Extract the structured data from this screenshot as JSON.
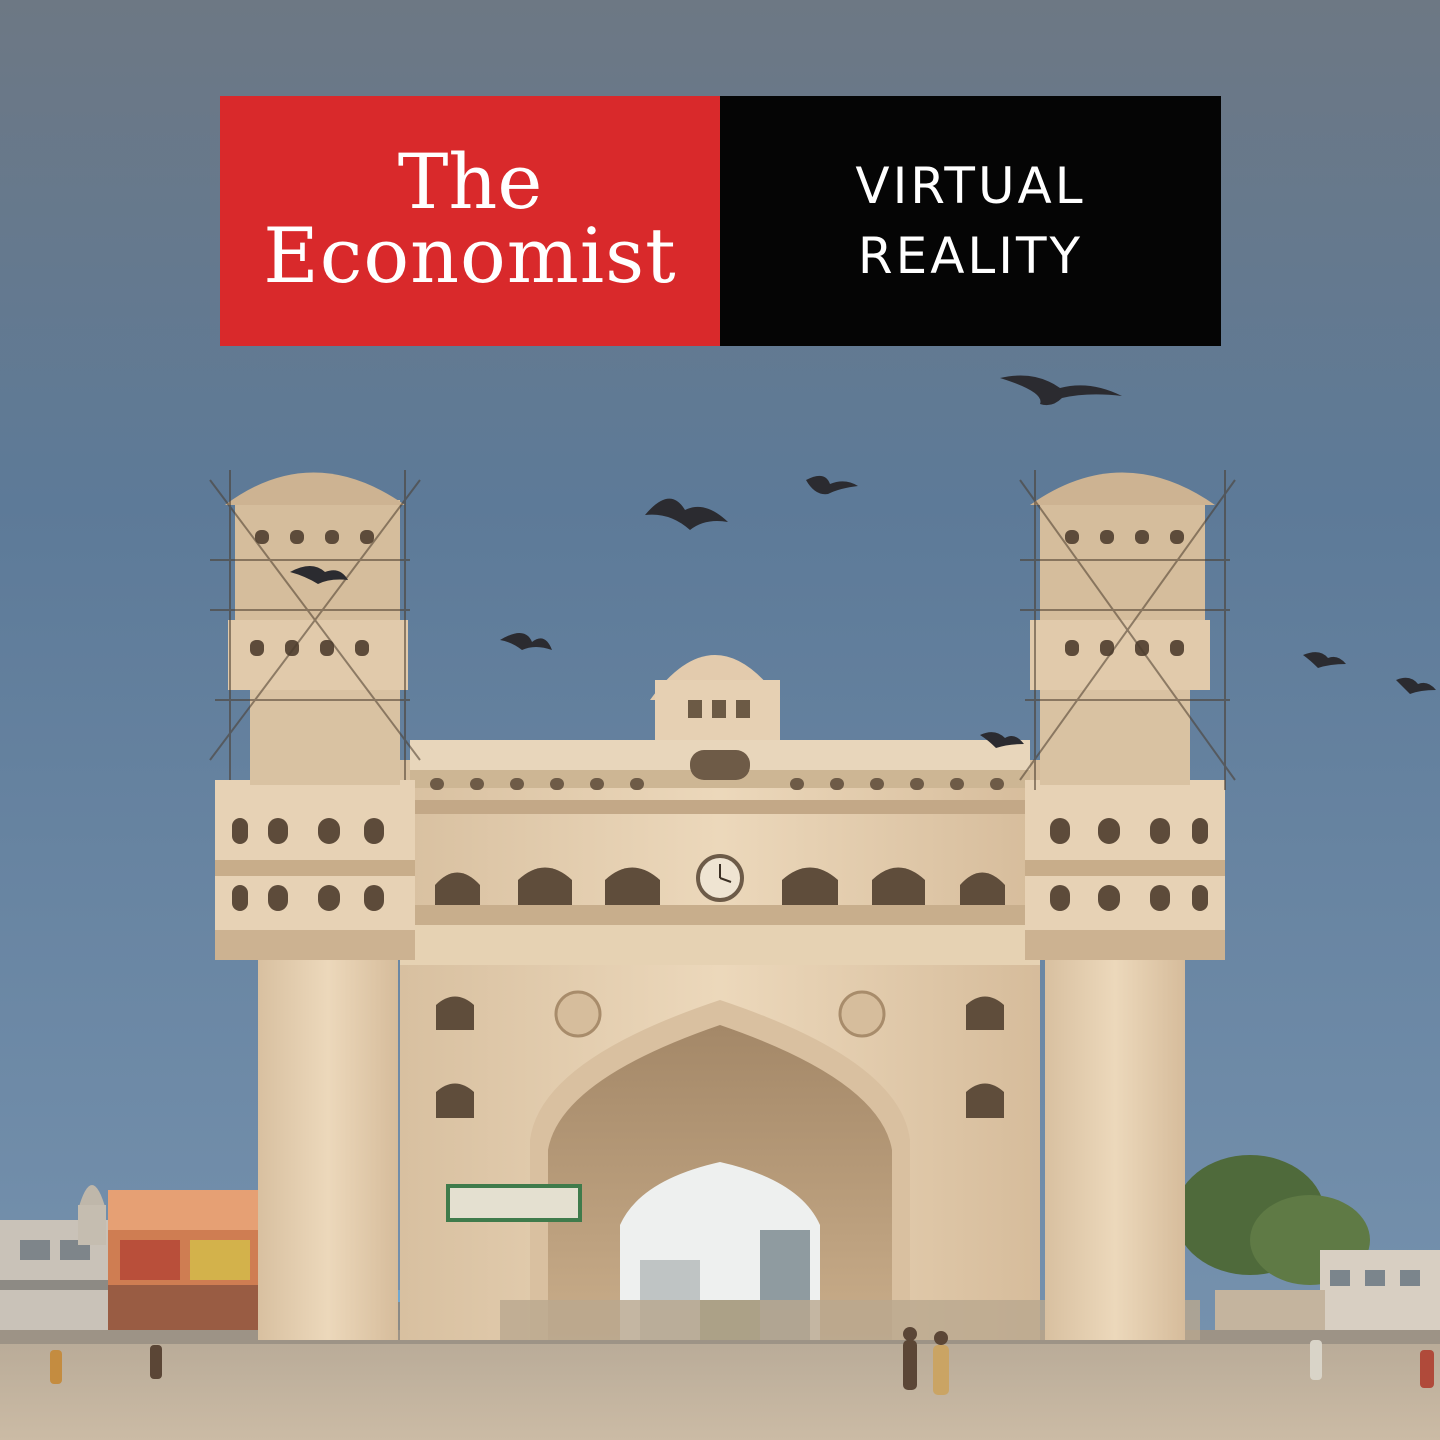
{
  "banner": {
    "brand_line1": "The",
    "brand_line2": "Economist",
    "product_line1": "VIRTUAL",
    "product_line2": "REALITY"
  },
  "colors": {
    "brand_red": "#d9292b",
    "product_black": "#050505",
    "sky_top": "#6c7a88",
    "sky_mid": "#5f7b99",
    "stone": "#e3cdb0",
    "ground": "#c7b8a3"
  },
  "photo": {
    "subject": "charminar-monument"
  }
}
